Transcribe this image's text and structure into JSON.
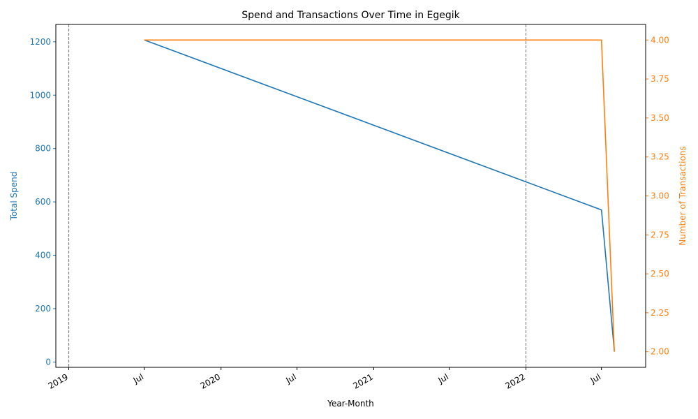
{
  "chart_data": {
    "type": "line",
    "title": "Spend and Transactions Over Time in Egegik",
    "xlabel": "Year-Month",
    "x": [
      "2019-07-01",
      "2022-07-01",
      "2022-08-01"
    ],
    "x_axis": {
      "range": [
        "2018-12-01",
        "2022-10-15"
      ],
      "ticks": [
        {
          "date": "2019-01-01",
          "label": "2019"
        },
        {
          "date": "2019-07-01",
          "label": "Jul"
        },
        {
          "date": "2020-01-01",
          "label": "2020"
        },
        {
          "date": "2020-07-01",
          "label": "Jul"
        },
        {
          "date": "2021-01-01",
          "label": "2021"
        },
        {
          "date": "2021-07-01",
          "label": "Jul"
        },
        {
          "date": "2022-01-01",
          "label": "2022"
        },
        {
          "date": "2022-07-01",
          "label": "Jul"
        }
      ],
      "vlines": [
        "2019-01-01",
        "2022-01-01"
      ]
    },
    "y_left": {
      "label": "Total Spend",
      "color": "#1f77b4",
      "range": [
        -20,
        1265
      ],
      "ticks": [
        0,
        200,
        400,
        600,
        800,
        1000,
        1200
      ]
    },
    "y_right": {
      "label": "Number of Transactions",
      "color": "#ff7f0e",
      "range": [
        1.9,
        4.1
      ],
      "ticks": [
        "2.00",
        "2.25",
        "2.50",
        "2.75",
        "3.00",
        "3.25",
        "3.50",
        "3.75",
        "4.00"
      ]
    },
    "series": [
      {
        "axis": "left",
        "color": "#1f77b4",
        "values": [
          1207,
          570,
          40
        ]
      },
      {
        "axis": "right",
        "color": "#ff7f0e",
        "values": [
          4,
          4,
          2
        ]
      }
    ],
    "grid": false
  }
}
